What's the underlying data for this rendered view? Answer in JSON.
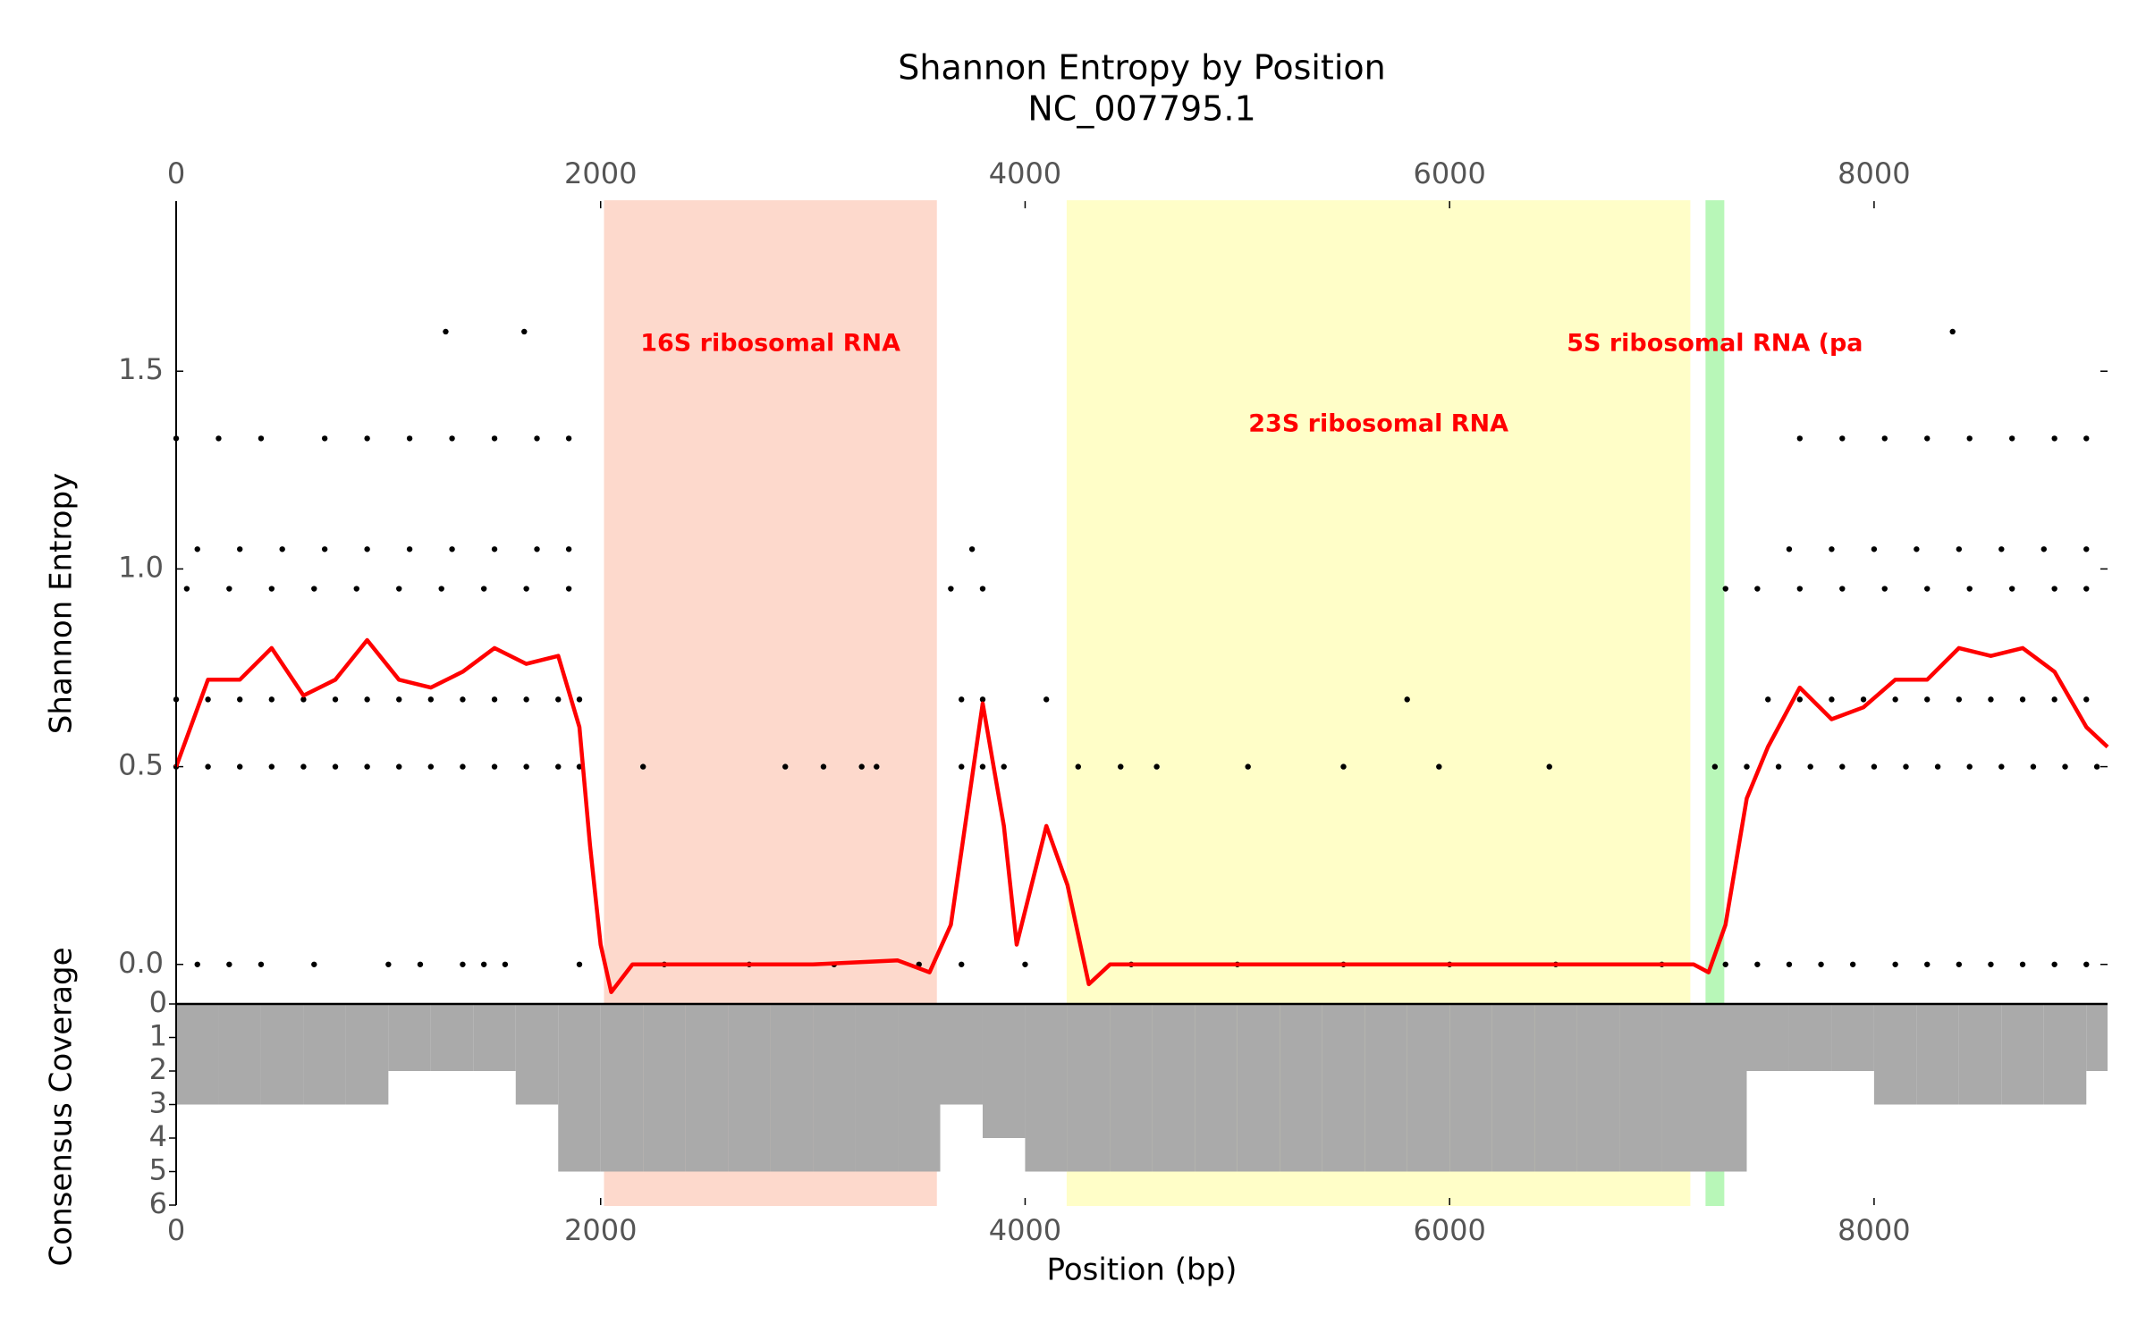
{
  "chart_data": [
    {
      "type": "line",
      "title": "Shannon Entropy by Position",
      "subtitle": "NC_007795.1",
      "ylabel": "Shannon Entropy",
      "xlim": [
        0,
        9100
      ],
      "xticks": [
        0,
        2000,
        4000,
        6000,
        8000
      ],
      "ylim": [
        -0.1,
        1.93
      ],
      "yticks": [
        {
          "value": 0,
          "label": "0.0"
        },
        0.5,
        {
          "value": 1,
          "label": "1.0"
        },
        1.5
      ],
      "regions": [
        {
          "label": "16S ribosomal RNA",
          "start": 2020,
          "end": 3580,
          "color": "#fdd9cc"
        },
        {
          "label": "23S ribosomal RNA",
          "start": 4200,
          "end": 7130,
          "color": "#fffec8"
        },
        {
          "label": "5S ribosomal RNA (pa",
          "start": 7210,
          "end": 7290,
          "color": "#b8f7b8"
        }
      ],
      "points_color": "#000000",
      "points": [
        {
          "x": [
            100,
            250,
            400,
            650,
            1000,
            1150,
            1350,
            1450,
            1550,
            1900,
            2300,
            2700,
            3100,
            3500,
            3700,
            4000,
            4500,
            5000,
            5500,
            6000,
            6500,
            7000,
            7300,
            7450,
            7600,
            7750,
            7900,
            8100,
            8250,
            8400,
            8550,
            8700,
            8850,
            9000
          ],
          "values": [
            0,
            0,
            0,
            0,
            0,
            0,
            0,
            0,
            0,
            0,
            0,
            0,
            0,
            0,
            0,
            0,
            0,
            0,
            0,
            0,
            0,
            0,
            0,
            0,
            0,
            0,
            0,
            0,
            0,
            0,
            0,
            0,
            0,
            0
          ]
        },
        {
          "x": [
            0,
            150,
            300,
            450,
            600,
            750,
            900,
            1050,
            1200,
            1350,
            1500,
            1650,
            1800,
            1900,
            2200,
            2870,
            3050,
            3230,
            3300,
            3700,
            3800,
            3900,
            4250,
            4450,
            4620,
            5050,
            5500,
            5950,
            6470,
            7250,
            7400,
            7550,
            7700,
            7850,
            8000,
            8150,
            8300,
            8450,
            8600,
            8750,
            8900,
            9050
          ],
          "values": [
            0.5,
            0.5,
            0.5,
            0.5,
            0.5,
            0.5,
            0.5,
            0.5,
            0.5,
            0.5,
            0.5,
            0.5,
            0.5,
            0.5,
            0.5,
            0.5,
            0.5,
            0.5,
            0.5,
            0.5,
            0.5,
            0.5,
            0.5,
            0.5,
            0.5,
            0.5,
            0.5,
            0.5,
            0.5,
            0.5,
            0.5,
            0.5,
            0.5,
            0.5,
            0.5,
            0.5,
            0.5,
            0.5,
            0.5,
            0.5,
            0.5,
            0.5
          ]
        },
        {
          "x": [
            0,
            150,
            300,
            450,
            600,
            750,
            900,
            1050,
            1200,
            1350,
            1500,
            1650,
            1800,
            1900,
            3700,
            3800,
            4100,
            5800,
            7500,
            7650,
            7800,
            7950,
            8100,
            8250,
            8400,
            8550,
            8700,
            8850,
            9000
          ],
          "values": [
            0.67,
            0.67,
            0.67,
            0.67,
            0.67,
            0.67,
            0.67,
            0.67,
            0.67,
            0.67,
            0.67,
            0.67,
            0.67,
            0.67,
            0.67,
            0.67,
            0.67,
            0.67,
            0.67,
            0.67,
            0.67,
            0.67,
            0.67,
            0.67,
            0.67,
            0.67,
            0.67,
            0.67,
            0.67
          ]
        },
        {
          "x": [
            50,
            250,
            450,
            650,
            850,
            1050,
            1250,
            1450,
            1650,
            1850,
            3650,
            3800,
            7300,
            7450,
            7650,
            7850,
            8050,
            8250,
            8450,
            8650,
            8850,
            9000
          ],
          "values": [
            0.95,
            0.95,
            0.95,
            0.95,
            0.95,
            0.95,
            0.95,
            0.95,
            0.95,
            0.95,
            0.95,
            0.95,
            0.95,
            0.95,
            0.95,
            0.95,
            0.95,
            0.95,
            0.95,
            0.95,
            0.95,
            0.95
          ]
        },
        {
          "x": [
            100,
            300,
            500,
            700,
            900,
            1100,
            1300,
            1500,
            1700,
            1850,
            3750,
            7600,
            7800,
            8000,
            8200,
            8400,
            8600,
            8800,
            9000
          ],
          "values": [
            1.05,
            1.05,
            1.05,
            1.05,
            1.05,
            1.05,
            1.05,
            1.05,
            1.05,
            1.05,
            1.05,
            1.05,
            1.05,
            1.05,
            1.05,
            1.05,
            1.05,
            1.05,
            1.05
          ]
        },
        {
          "x": [
            0,
            200,
            400,
            700,
            900,
            1100,
            1300,
            1500,
            1700,
            1850,
            7650,
            7850,
            8050,
            8250,
            8450,
            8650,
            8850,
            9000
          ],
          "values": [
            1.33,
            1.33,
            1.33,
            1.33,
            1.33,
            1.33,
            1.33,
            1.33,
            1.33,
            1.33,
            1.33,
            1.33,
            1.33,
            1.33,
            1.33,
            1.33,
            1.33,
            1.33
          ]
        },
        {
          "x": [
            1270,
            1640,
            8370
          ],
          "values": [
            1.6,
            1.6,
            1.6
          ]
        }
      ],
      "series": [
        {
          "color": "#ff0000",
          "x": [
            0,
            150,
            300,
            450,
            600,
            750,
            900,
            1050,
            1200,
            1350,
            1500,
            1650,
            1800,
            1900,
            1950,
            2000,
            2050,
            2150,
            2500,
            3000,
            3400,
            3550,
            3650,
            3800,
            3900,
            3960,
            4100,
            4200,
            4300,
            4400,
            5000,
            6000,
            7000,
            7150,
            7220,
            7300,
            7400,
            7500,
            7650,
            7800,
            7950,
            8100,
            8250,
            8400,
            8550,
            8700,
            8850,
            9000,
            9100
          ],
          "values": [
            0.5,
            0.72,
            0.72,
            0.8,
            0.68,
            0.72,
            0.82,
            0.72,
            0.7,
            0.74,
            0.8,
            0.76,
            0.78,
            0.6,
            0.3,
            0.05,
            -0.07,
            0.0,
            0.0,
            0.0,
            0.01,
            -0.02,
            0.1,
            0.66,
            0.35,
            0.05,
            0.35,
            0.2,
            -0.05,
            0.0,
            0.0,
            0.0,
            0.0,
            0.0,
            -0.02,
            0.1,
            0.42,
            0.55,
            0.7,
            0.62,
            0.65,
            0.72,
            0.72,
            0.8,
            0.78,
            0.8,
            0.74,
            0.6,
            0.55
          ]
        }
      ]
    },
    {
      "type": "histogram",
      "xlabel": "Position (bp)",
      "ylabel": "Consensus Coverage",
      "color": "#aaaaaa",
      "xlim": [
        0,
        9100
      ],
      "xticks": [
        0,
        2000,
        4000,
        6000,
        8000
      ],
      "ylim": [
        0,
        6
      ],
      "yticks": [
        0,
        1,
        2,
        3,
        4,
        5,
        6
      ],
      "inverted": true,
      "bins": [
        0,
        200,
        400,
        600,
        800,
        1000,
        1200,
        1400,
        1600,
        1800,
        2000,
        2200,
        2400,
        2600,
        2800,
        3000,
        3200,
        3400,
        3600,
        3800,
        4000,
        4200,
        4400,
        4600,
        4800,
        5000,
        5200,
        5400,
        5600,
        5800,
        6000,
        6200,
        6400,
        6600,
        6800,
        7000,
        7200,
        7400,
        7600,
        7800,
        8000,
        8200,
        8400,
        8600,
        8800,
        9000,
        9100
      ],
      "values": [
        3,
        3,
        3,
        3,
        3,
        2,
        2,
        2,
        3,
        5,
        5,
        5,
        5,
        5,
        5,
        5,
        5,
        5,
        3,
        4,
        5,
        5,
        5,
        5,
        5,
        5,
        5,
        5,
        5,
        5,
        5,
        5,
        5,
        5,
        5,
        5,
        5,
        2,
        2,
        2,
        3,
        3,
        3,
        3,
        3,
        2
      ]
    }
  ]
}
